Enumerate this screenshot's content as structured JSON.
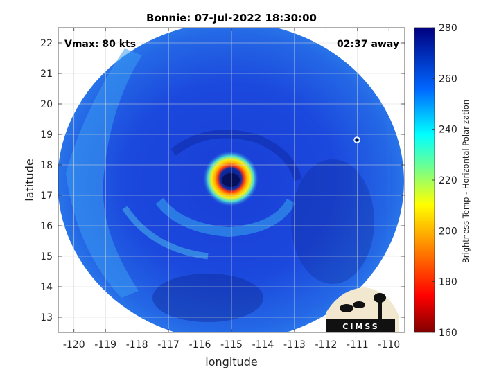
{
  "title": "Bonnie: 07-Jul-2022 18:30:00",
  "vmax_label": "Vmax: 80 kts",
  "time_away_label": "02:37 away",
  "x_axis": {
    "label": "longitude",
    "range": [
      -120.5,
      -109.5
    ],
    "ticks": [
      -120,
      -119,
      -118,
      -117,
      -116,
      -115,
      -114,
      -113,
      -112,
      -111,
      -110
    ],
    "tick_labels": [
      "-120",
      "-119",
      "-118",
      "-117",
      "-116",
      "-115",
      "-114",
      "-113",
      "-112",
      "-111",
      "-110"
    ]
  },
  "y_axis": {
    "label": "latitude",
    "range": [
      12.5,
      22.5
    ],
    "ticks": [
      13,
      14,
      15,
      16,
      17,
      18,
      19,
      20,
      21,
      22
    ],
    "tick_labels": [
      "13",
      "14",
      "15",
      "16",
      "17",
      "18",
      "19",
      "20",
      "21",
      "22"
    ]
  },
  "colorbar": {
    "label": "Brightness Temp - Horizontal Polarization",
    "range": [
      160,
      280
    ],
    "ticks": [
      160,
      180,
      200,
      220,
      240,
      260,
      280
    ],
    "tick_labels": [
      "160",
      "180",
      "200",
      "220",
      "240",
      "260",
      "280"
    ]
  },
  "storm": {
    "center_lon": -114.85,
    "center_lat": 17.45,
    "swath_center_lon": -115.0,
    "swath_center_lat": 17.6
  },
  "logo_text": "CIMSS",
  "grid": true
}
